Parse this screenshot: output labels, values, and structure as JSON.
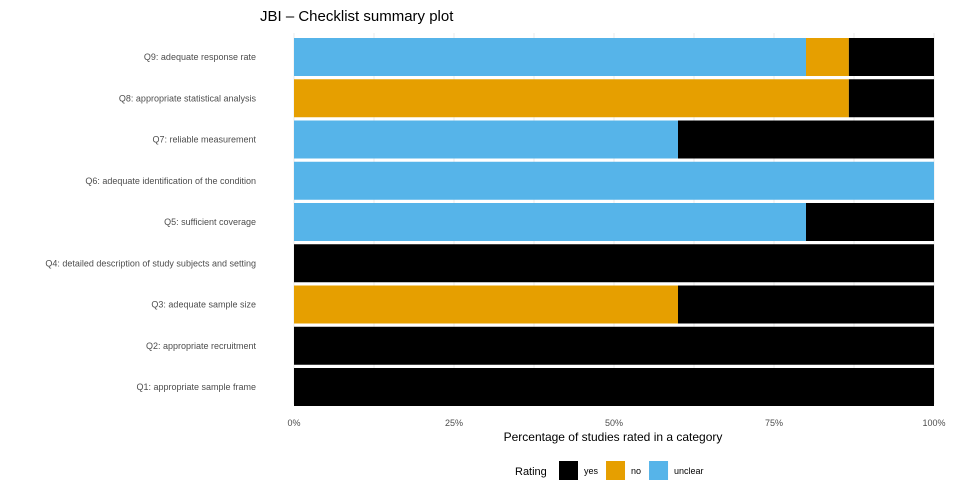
{
  "chart_data": {
    "type": "bar",
    "orientation": "horizontal",
    "stacked": true,
    "title": "JBI – Checklist summary plot",
    "xlabel": "Percentage of studies rated in a category",
    "ylabel": "",
    "xlim": [
      0,
      100
    ],
    "x_ticks": [
      "0%",
      "25%",
      "50%",
      "75%",
      "100%"
    ],
    "x_tick_values": [
      0,
      25,
      50,
      75,
      100
    ],
    "grid": true,
    "categories": [
      "Q9: adequate response rate",
      "Q8: appropriate statistical analysis",
      "Q7: reliable measurement",
      "Q6: adequate identification of the condition",
      "Q5: sufficient coverage",
      "Q4: detailed description of study subjects and setting",
      "Q3: adequate sample size",
      "Q2: appropriate recruitment",
      "Q1: appropriate sample frame"
    ],
    "series": [
      {
        "name": "unclear",
        "color": "#56B4E9",
        "values": [
          80,
          0,
          60,
          100,
          80,
          0,
          0,
          0,
          0
        ]
      },
      {
        "name": "no",
        "color": "#E69F00",
        "values": [
          6.7,
          86.7,
          0,
          0,
          0,
          0,
          60,
          0,
          0
        ]
      },
      {
        "name": "yes",
        "color": "#000000",
        "values": [
          13.3,
          13.3,
          40,
          0,
          20,
          100,
          40,
          100,
          100
        ]
      }
    ],
    "legend": {
      "title": "Rating",
      "position": "bottom",
      "order": [
        "yes",
        "no",
        "unclear"
      ]
    }
  }
}
